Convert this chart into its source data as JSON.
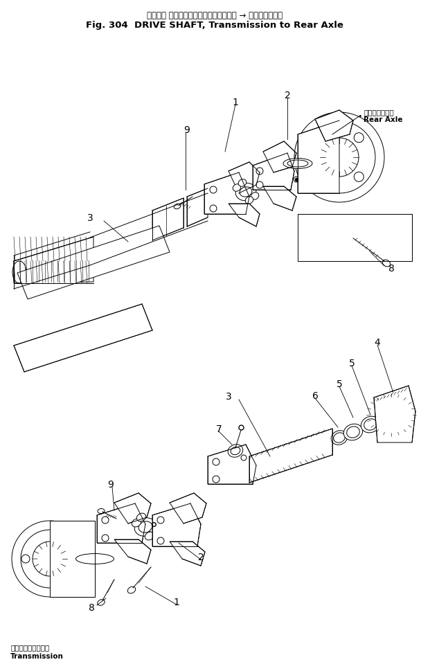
{
  "title_jp": "ドライブ シャフト　トランスミッション → リヤーアクスル",
  "title_en": "Fig. 304  DRIVE SHAFT, Transmission to Rear Axle",
  "bottom_label_jp": "トランスミッション",
  "bottom_label_en": "Transmission",
  "rear_axle_jp": "リアーアクスル",
  "rear_axle_en": "Rear Axle",
  "bg_color": "#ffffff",
  "line_color": "#000000",
  "lw": 0.7
}
